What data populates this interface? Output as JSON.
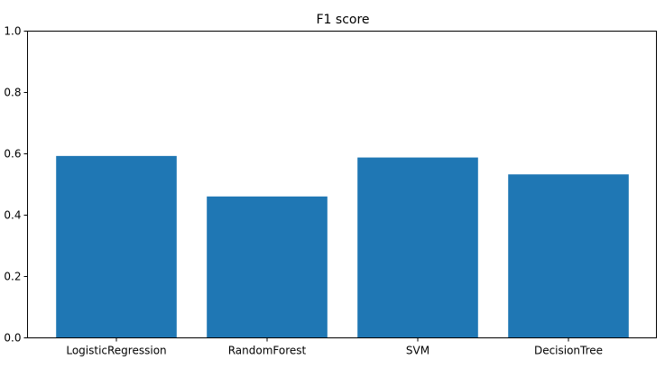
{
  "chart_data": {
    "type": "bar",
    "title": "F1 score",
    "xlabel": "",
    "ylabel": "",
    "categories": [
      "LogisticRegression",
      "RandomForest",
      "SVM",
      "DecisionTree"
    ],
    "values": [
      0.593,
      0.461,
      0.588,
      0.533
    ],
    "ylim": [
      0.0,
      1.0
    ],
    "yticks": [
      "0.0",
      "0.2",
      "0.4",
      "0.6",
      "0.8",
      "1.0"
    ],
    "grid": false,
    "legend": "none",
    "bar_color": "#1f77b4"
  }
}
